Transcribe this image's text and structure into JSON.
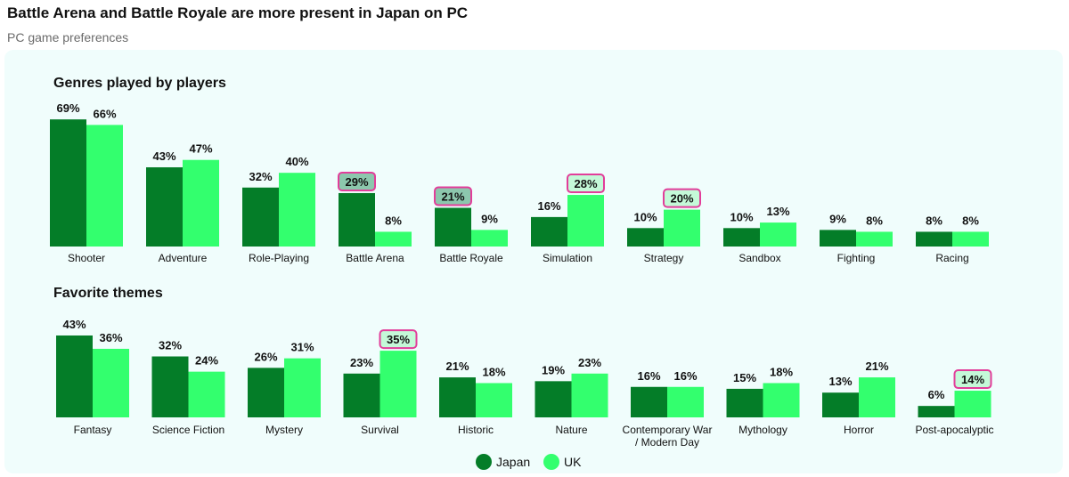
{
  "title": "Battle Arena and Battle Royale are more present in Japan on PC",
  "subtitle": "PC  game preferences",
  "colors": {
    "japan": "#047d28",
    "uk": "#33ff6e",
    "highlight": "#e23d9a",
    "panel": "#f0fdfc"
  },
  "legend": [
    {
      "name": "Japan"
    },
    {
      "name": "UK"
    }
  ],
  "chart_data": [
    {
      "type": "bar",
      "title": "Genres played by players",
      "categories": [
        "Shooter",
        "Adventure",
        "Role-Playing",
        "Battle Arena",
        "Battle Royale",
        "Simulation",
        "Strategy",
        "Sandbox",
        "Fighting",
        "Racing"
      ],
      "series": [
        {
          "name": "Japan",
          "values": [
            69,
            43,
            32,
            29,
            21,
            16,
            10,
            10,
            9,
            8
          ]
        },
        {
          "name": "UK",
          "values": [
            66,
            47,
            40,
            8,
            9,
            28,
            20,
            13,
            8,
            8
          ]
        }
      ],
      "value_labels": {
        "Japan": [
          "69%",
          "43%",
          "32%",
          "29%",
          "21%",
          "16%",
          "10%",
          "10%",
          "9%",
          "8%"
        ],
        "UK": [
          "66%",
          "47%",
          "40%",
          "8%",
          "9%",
          "28%",
          "20%",
          "13%",
          "8%",
          "8%"
        ]
      },
      "highlighted": [
        {
          "series": "Japan",
          "category": "Battle Arena"
        },
        {
          "series": "Japan",
          "category": "Battle Royale"
        },
        {
          "series": "UK",
          "category": "Simulation"
        },
        {
          "series": "UK",
          "category": "Strategy"
        }
      ],
      "unit": "%"
    },
    {
      "type": "bar",
      "title": "Favorite themes",
      "categories": [
        "Fantasy",
        "Science Fiction",
        "Mystery",
        "Survival",
        "Historic",
        "Nature",
        "Contemporary War / Modern Day",
        "Mythology",
        "Horror",
        "Post-apocalyptic"
      ],
      "category_lines": [
        [
          "Fantasy"
        ],
        [
          "Science Fiction"
        ],
        [
          "Mystery"
        ],
        [
          "Survival"
        ],
        [
          "Historic"
        ],
        [
          "Nature"
        ],
        [
          "Contemporary War",
          "/ Modern Day"
        ],
        [
          "Mythology"
        ],
        [
          "Horror"
        ],
        [
          "Post-apocalyptic"
        ]
      ],
      "series": [
        {
          "name": "Japan",
          "values": [
            43,
            32,
            26,
            23,
            21,
            19,
            16,
            15,
            13,
            6
          ]
        },
        {
          "name": "UK",
          "values": [
            36,
            24,
            31,
            35,
            18,
            23,
            16,
            18,
            21,
            14
          ]
        }
      ],
      "value_labels": {
        "Japan": [
          "43%",
          "32%",
          "26%",
          "23%",
          "21%",
          "19%",
          "16%",
          "15%",
          "13%",
          "6%"
        ],
        "UK": [
          "36%",
          "24%",
          "31%",
          "35%",
          "18%",
          "23%",
          "16%",
          "18%",
          "21%",
          "14%"
        ]
      },
      "highlighted": [
        {
          "series": "UK",
          "category": "Survival"
        },
        {
          "series": "UK",
          "category": "Post-apocalyptic"
        }
      ],
      "unit": "%"
    }
  ]
}
